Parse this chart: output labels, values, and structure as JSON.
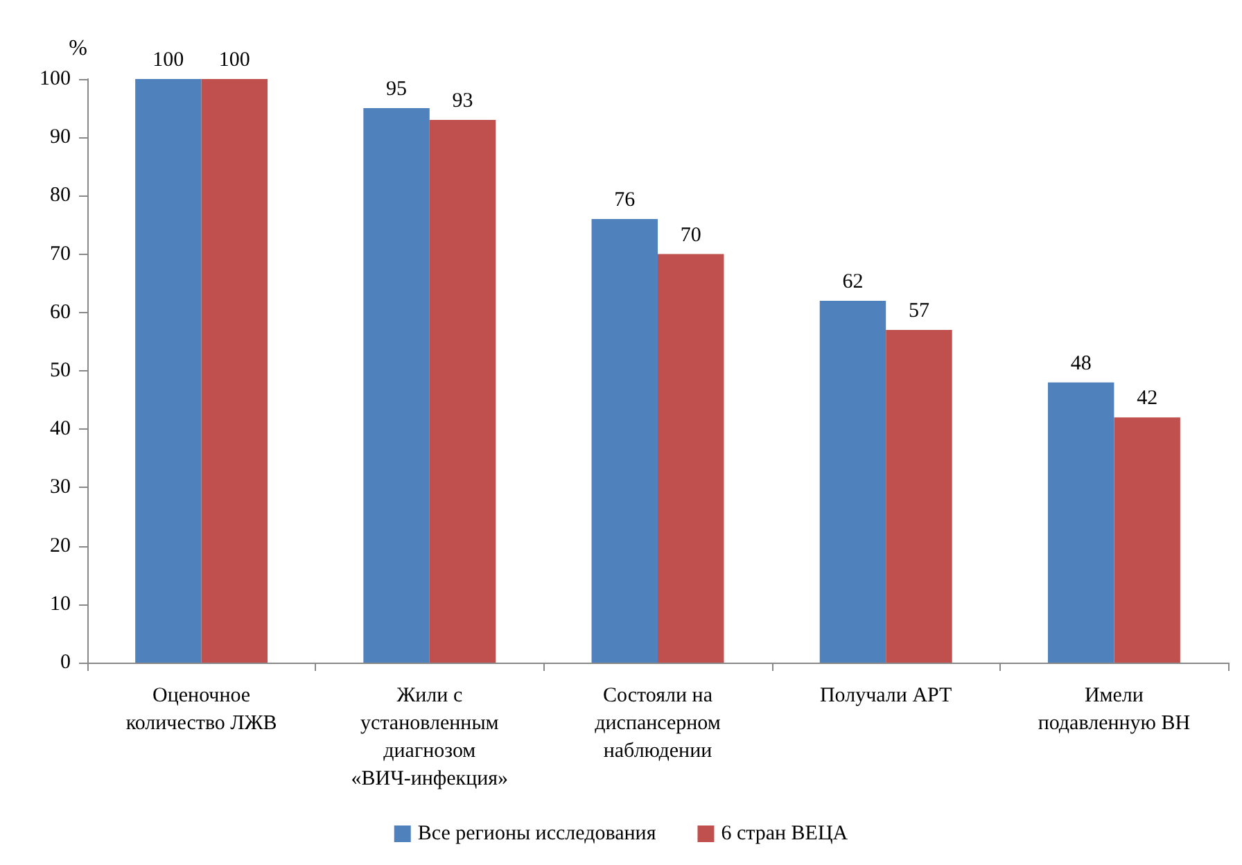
{
  "chart_data": {
    "type": "bar",
    "ylabel": "%",
    "categories": [
      "Оценочное количество ЛЖВ",
      "Жили с установленным диагнозом «ВИЧ-инфекция»",
      "Состояли на диспансерном наблюдении",
      "Получали АРТ",
      "Имели подавленную ВН"
    ],
    "series": [
      {
        "name": "Все регионы исследования",
        "color": "#4f81bd",
        "values": [
          100,
          95,
          76,
          62,
          48
        ]
      },
      {
        "name": "6 стран ВЕЦА",
        "color": "#c0504d",
        "values": [
          100,
          93,
          70,
          57,
          42
        ]
      }
    ],
    "ylim": [
      0,
      100
    ],
    "yticks": [
      0,
      10,
      20,
      30,
      40,
      50,
      60,
      70,
      80,
      90,
      100
    ],
    "data_labels": true,
    "grid": false,
    "legend": "bottom"
  }
}
